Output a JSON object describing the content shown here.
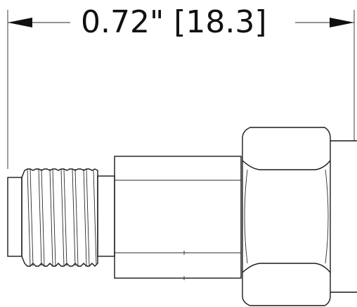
{
  "dimension": {
    "imperial": "0.72\"",
    "metric": "[18.3]"
  },
  "colors": {
    "line": "#1a1a1a",
    "background": "#ffffff"
  }
}
